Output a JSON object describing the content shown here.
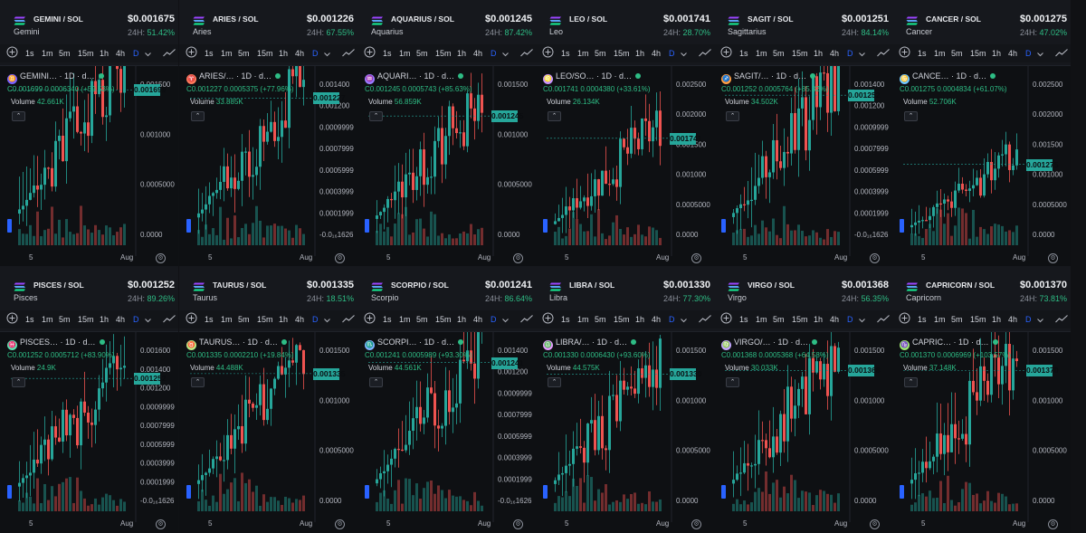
{
  "colors": {
    "up": "#26a69a",
    "down": "#ef5350",
    "accent": "#2962ff",
    "bg": "#0e1013"
  },
  "toolbar_items": [
    "1s",
    "1m",
    "5m",
    "15m",
    "1h",
    "4h",
    "D"
  ],
  "x_labels": {
    "left": "5",
    "right": "Aug"
  },
  "panels": [
    {
      "pair": "GEMINI / SOL",
      "price": "$0.001675",
      "name": "Gemini",
      "change_label": "24H:",
      "change": "51.42%",
      "legend_title": "GEMINI… · 1D · d…",
      "icon_color": "#7b61ff",
      "icon_glyph": "♊",
      "ohlc": "C0.001699  0.0006340 (+59.53%)",
      "volume_label": "Volume",
      "volume": "42.661K",
      "last_price": "0.001699",
      "y_ticks": [
        "0.001500",
        "0.001000",
        "0.0005000",
        "0.0000"
      ],
      "y_top": 0.0019,
      "y_bottom": -0.0002
    },
    {
      "pair": "ARIES / SOL",
      "price": "$0.001226",
      "name": "Aries",
      "change_label": "24H:",
      "change": "67.55%",
      "legend_title": "ARIES/… · 1D · d…",
      "icon_color": "#ff7a5c",
      "icon_glyph": "♈",
      "ohlc": "C0.001227  0.0005375 (+77.96%)",
      "volume_label": "Volume",
      "volume": "33.885K",
      "last_price": "0.001227",
      "y_ticks": [
        "0.001400",
        "0.001200",
        "0.0009999",
        "0.0007999",
        "0.0005999",
        "0.0003999",
        "0.0001999",
        "-0.0₁₆1626"
      ],
      "y_top": 0.00145,
      "y_bottom": -0.00012
    },
    {
      "pair": "AQUARIUS / SOL",
      "price": "$0.001245",
      "name": "Aquarius",
      "change_label": "24H:",
      "change": "87.42%",
      "legend_title": "AQUARI… · 1D · d…",
      "icon_color": "#9b7bff",
      "icon_glyph": "♒",
      "ohlc": "C0.001245  0.0005743 (+85.63%)",
      "volume_label": "Volume",
      "volume": "56.859K",
      "last_price": "0.001245",
      "y_ticks": [
        "0.001500",
        "0.001000",
        "0.0005000",
        "0.0000"
      ],
      "y_top": 0.0017,
      "y_bottom": -0.00015
    },
    {
      "pair": "LEO / SOL",
      "price": "$0.001741",
      "name": "Leo",
      "change_label": "24H:",
      "change": "28.70%",
      "legend_title": "LEO/SO… · 1D · d…",
      "icon_color": "#c792ff",
      "icon_glyph": "♌",
      "ohlc": "C0.001741  0.0004380 (+33.61%)",
      "volume_label": "Volume",
      "volume": "26.134K",
      "last_price": "0.001741",
      "y_ticks": [
        "0.002500",
        "0.002000",
        "0.001500",
        "0.001000",
        "0.0005000",
        "0.0000"
      ],
      "y_top": 0.0029,
      "y_bottom": -0.0002
    },
    {
      "pair": "SAGIT / SOL",
      "price": "$0.001251",
      "name": "Sagittarius",
      "change_label": "24H:",
      "change": "84.14%",
      "legend_title": "SAGIT/… · 1D · d…",
      "icon_color": "#ff9f43",
      "icon_glyph": "♐",
      "ohlc": "C0.001252  0.0005764 (+85.32%)",
      "volume_label": "Volume",
      "volume": "34.502K",
      "last_price": "0.001252",
      "y_ticks": [
        "0.001400",
        "0.001200",
        "0.0009999",
        "0.0007999",
        "0.0005999",
        "0.0003999",
        "0.0001999",
        "-0.0₁₆1626"
      ],
      "y_top": 0.00145,
      "y_bottom": -0.00012
    },
    {
      "pair": "CANCER / SOL",
      "price": "$0.001275",
      "name": "Cancer",
      "change_label": "24H:",
      "change": "47.02%",
      "legend_title": "CANCE… · 1D · d…",
      "icon_color": "#6ec6ff",
      "icon_glyph": "♋",
      "ohlc": "C0.001275  0.0004834 (+61.07%)",
      "volume_label": "Volume",
      "volume": "52.706K",
      "last_price": "0.001275",
      "y_ticks": [
        "0.002500",
        "0.002000",
        "0.001500",
        "0.001000",
        "0.0005000",
        "0.0000"
      ],
      "y_top": 0.0029,
      "y_bottom": -0.0002
    },
    {
      "pair": "PISCES / SOL",
      "price": "$0.001252",
      "name": "Pisces",
      "change_label": "24H:",
      "change": "89.26%",
      "legend_title": "PISCES… · 1D · d…",
      "icon_color": "#5fe0b0",
      "icon_glyph": "♓",
      "ohlc": "C0.001252  0.0005712 (+83.90%)",
      "volume_label": "Volume",
      "volume": "24.9K",
      "last_price": "0.001252",
      "y_ticks": [
        "0.001600",
        "0.001400",
        "0.001200",
        "0.0009999",
        "0.0007999",
        "0.0005999",
        "0.0003999",
        "0.0001999",
        "-0.0₁₆1626"
      ],
      "y_top": 0.00165,
      "y_bottom": -0.00012
    },
    {
      "pair": "TAURUS / SOL",
      "price": "$0.001335",
      "name": "Taurus",
      "change_label": "24H:",
      "change": "18.51%",
      "legend_title": "TAURUS… · 1D · d…",
      "icon_color": "#b8e986",
      "icon_glyph": "♉",
      "ohlc": "C0.001335  0.0002210 (+19.84%)",
      "volume_label": "Volume",
      "volume": "44.488K",
      "last_price": "0.001335",
      "y_ticks": [
        "0.001500",
        "0.001000",
        "0.0005000",
        "0.0000"
      ],
      "y_top": 0.0017,
      "y_bottom": -0.00015
    },
    {
      "pair": "SCORPIO / SOL",
      "price": "$0.001241",
      "name": "Scorpio",
      "change_label": "24H:",
      "change": "86.64%",
      "legend_title": "SCORPI… · 1D · d…",
      "icon_color": "#7fb2ff",
      "icon_glyph": "♏",
      "ohlc": "C0.001241  0.0005989 (+93.30%)",
      "volume_label": "Volume",
      "volume": "44.561K",
      "last_price": "0.001241",
      "y_ticks": [
        "0.001400",
        "0.001200",
        "0.0009999",
        "0.0007999",
        "0.0005999",
        "0.0003999",
        "0.0001999",
        "-0.0₁₆1626"
      ],
      "y_top": 0.00145,
      "y_bottom": -0.00012
    },
    {
      "pair": "LIBRA / SOL",
      "price": "$0.001330",
      "name": "Libra",
      "change_label": "24H:",
      "change": "77.30%",
      "legend_title": "LIBRA/… · 1D · d…",
      "icon_color": "#e59cff",
      "icon_glyph": "♎",
      "ohlc": "C0.001330  0.0006430 (+93.60%)",
      "volume_label": "Volume",
      "volume": "44.575K",
      "last_price": "0.001330",
      "y_ticks": [
        "0.001500",
        "0.001000",
        "0.0005000",
        "0.0000"
      ],
      "y_top": 0.0017,
      "y_bottom": -0.00015
    },
    {
      "pair": "VIRGO / SOL",
      "price": "$0.001368",
      "name": "Virgo",
      "change_label": "24H:",
      "change": "56.35%",
      "legend_title": "VIRGO/… · 1D · d…",
      "icon_color": "#c3a6ff",
      "icon_glyph": "♍",
      "ohlc": "C0.001368  0.0005368 (+64.58%)",
      "volume_label": "Volume",
      "volume": "30.033K",
      "last_price": "0.001368",
      "y_ticks": [
        "0.001500",
        "0.001000",
        "0.0005000",
        "0.0000"
      ],
      "y_top": 0.0017,
      "y_bottom": -0.00015
    },
    {
      "pair": "CAPRICORN / SOL",
      "price": "$0.001370",
      "name": "Capricorn",
      "change_label": "24H:",
      "change": "73.81%",
      "legend_title": "CAPRIC… · 1D · d…",
      "icon_color": "#9fe870",
      "icon_glyph": "♑",
      "ohlc": "C0.001370  0.0006969 (+103.57%)",
      "volume_label": "Volume",
      "volume": "37.148K",
      "last_price": "0.001370",
      "y_ticks": [
        "0.001500",
        "0.001000",
        "0.0005000",
        "0.0000"
      ],
      "y_top": 0.0017,
      "y_bottom": -0.00015
    }
  ]
}
